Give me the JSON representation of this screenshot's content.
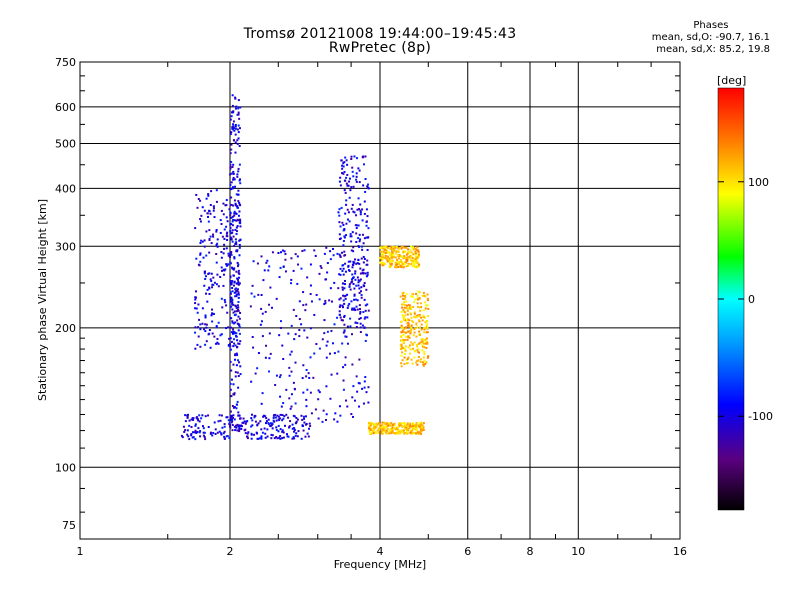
{
  "title_line1": "Tromsø 20121008 19:44:00–19:45:43",
  "title_line2": "RwPretec (8p)",
  "phase_info": {
    "title": "Phases",
    "line1": "mean, sd,O: -90.7, 16.1",
    "line2": "mean, sd,X:  85.2, 19.8"
  },
  "chart_data": {
    "type": "scatter",
    "xlabel": "Frequency [MHz]",
    "ylabel": "Stationary phase Virtual Height [km]",
    "xscale": "log",
    "yscale": "log",
    "xlim": [
      1,
      16
    ],
    "ylim": [
      70,
      750
    ],
    "xticks": [
      1,
      2,
      4,
      6,
      8,
      10,
      16
    ],
    "yticks": [
      75,
      100,
      200,
      300,
      400,
      500,
      600,
      750
    ],
    "grid": true,
    "colorbar": {
      "label": "[deg]",
      "range": [
        -180,
        180
      ],
      "ticks": [
        100,
        0,
        -100
      ]
    },
    "series": [
      {
        "name": "O",
        "phase_deg": -100,
        "traces": [
          {
            "f_range": [
              1.7,
              2.1
            ],
            "h_range": [
              180,
              400
            ]
          },
          {
            "f_range": [
              2.0,
              2.1
            ],
            "h_range": [
              120,
              640
            ]
          },
          {
            "f_range": [
              1.6,
              2.9
            ],
            "h_range": [
              115,
              130
            ]
          },
          {
            "f_range": [
              2.2,
              3.8
            ],
            "h_range": [
              125,
              300
            ]
          },
          {
            "f_range": [
              3.3,
              3.8
            ],
            "h_range": [
              200,
              470
            ]
          }
        ]
      },
      {
        "name": "X",
        "phase_deg": 110,
        "traces": [
          {
            "f_range": [
              3.8,
              4.9
            ],
            "h_range": [
              118,
              125
            ]
          },
          {
            "f_range": [
              4.4,
              5.0
            ],
            "h_range": [
              165,
              240
            ]
          },
          {
            "f_range": [
              4.0,
              4.8
            ],
            "h_range": [
              270,
              300
            ]
          }
        ]
      }
    ]
  }
}
